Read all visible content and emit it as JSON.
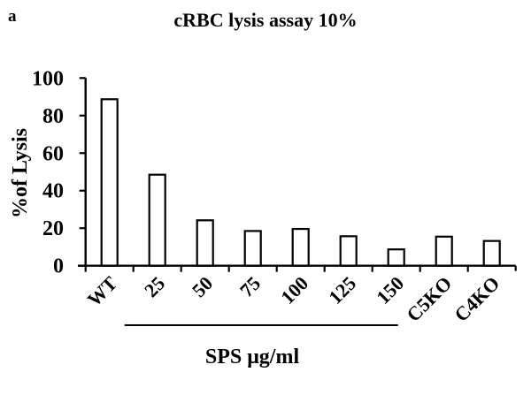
{
  "panel_label": "a",
  "chart_data": {
    "type": "bar",
    "title": "cRBC lysis assay 10%",
    "xlabel": "SPS μg/ml",
    "ylabel": "%of Lysis",
    "categories": [
      "WT",
      "25",
      "50",
      "75",
      "100",
      "125",
      "150",
      "C5KO",
      "C4KO"
    ],
    "values": [
      88.7,
      48.5,
      24.2,
      18.5,
      19.6,
      15.7,
      8.7,
      15.5,
      13.2
    ],
    "ylim": [
      0,
      100
    ],
    "yticks": [
      0,
      20,
      40,
      60,
      80,
      100
    ],
    "grid": false,
    "legend": null,
    "bar_fill": "#ffffff",
    "bar_stroke": "#000000",
    "annotations": [
      {
        "type": "bracket",
        "label": "SPS μg/ml",
        "spans_categories": [
          "25",
          "50",
          "75",
          "100",
          "125",
          "150"
        ]
      }
    ]
  }
}
